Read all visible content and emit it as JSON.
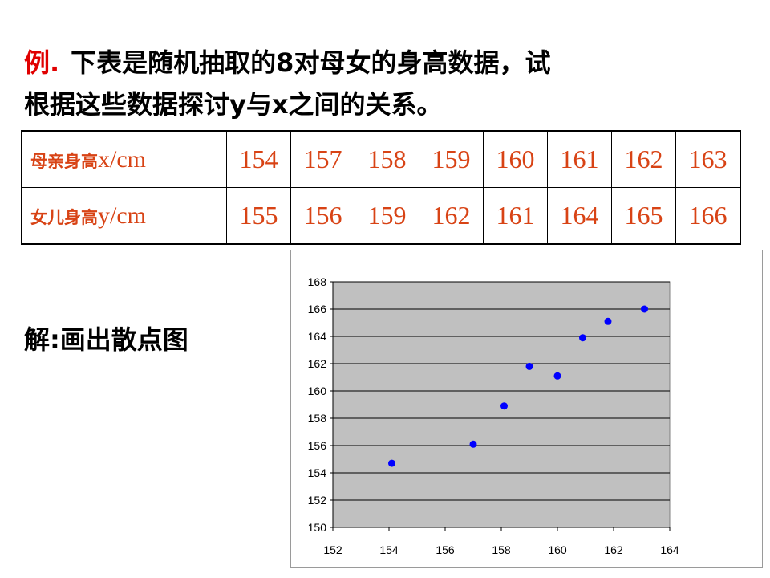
{
  "problem": {
    "label": "例.",
    "line1": "下表是随机抽取的8对母女的身高数据，试",
    "line2": "根据这些数据探讨y与x之间的关系。"
  },
  "table": {
    "rows": [
      {
        "header_cn": "母亲身高",
        "header_unit": "x/cm",
        "values": [
          "154",
          "157",
          "158",
          "159",
          "160",
          "161",
          "162",
          "163"
        ]
      },
      {
        "header_cn": "女儿身高",
        "header_unit": "y/cm",
        "values": [
          "155",
          "156",
          "159",
          "162",
          "161",
          "164",
          "165",
          "166"
        ]
      }
    ]
  },
  "solution": {
    "text": "解:画出散点图"
  },
  "colors": {
    "label_red": "#e00000",
    "table_text": "#d84315",
    "plot_bg": "#c0c0c0",
    "point": "#0000ff"
  },
  "chart_data": {
    "type": "scatter",
    "title": "",
    "xlabel": "",
    "ylabel": "",
    "xlim": [
      152,
      164
    ],
    "ylim": [
      150,
      168
    ],
    "xticks": [
      "152",
      "154",
      "156",
      "158",
      "160",
      "162",
      "164"
    ],
    "yticks": [
      "150",
      "152",
      "154",
      "156",
      "158",
      "160",
      "162",
      "164",
      "166",
      "168"
    ],
    "grid": "horizontal",
    "series": [
      {
        "points": [
          {
            "x": 154.1,
            "y": 154.7
          },
          {
            "x": 157.0,
            "y": 156.1
          },
          {
            "x": 158.1,
            "y": 158.9
          },
          {
            "x": 159.0,
            "y": 161.8
          },
          {
            "x": 160.0,
            "y": 161.1
          },
          {
            "x": 160.9,
            "y": 163.9
          },
          {
            "x": 161.8,
            "y": 165.1
          },
          {
            "x": 163.1,
            "y": 166.0
          }
        ]
      }
    ]
  }
}
